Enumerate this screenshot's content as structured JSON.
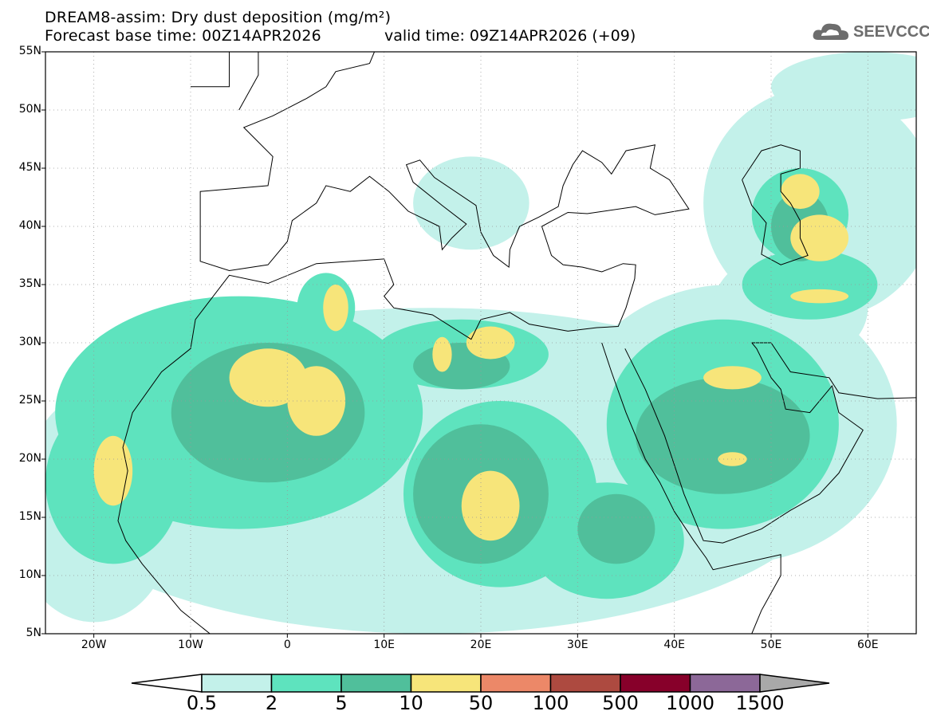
{
  "title": {
    "line1": "DREAM8-assim: Dry dust deposition (mg/m²)",
    "base_time": "Forecast base time: 00Z14APR2026",
    "valid_time": "valid time: 09Z14APR2026 (+09)"
  },
  "logo": {
    "text": "SEEVCCC",
    "icon": "cloud-icon"
  },
  "lat_labels": [
    "55N",
    "50N",
    "45N",
    "40N",
    "35N",
    "30N",
    "25N",
    "20N",
    "15N",
    "10N",
    "5N"
  ],
  "lon_labels": [
    "20W",
    "10W",
    "0",
    "10E",
    "20E",
    "30E",
    "40E",
    "50E",
    "60E"
  ],
  "colorbar": {
    "labels": [
      "0.5",
      "2",
      "5",
      "10",
      "50",
      "100",
      "500",
      "1000",
      "1500"
    ],
    "colors": [
      "#c3f1ea",
      "#5ee3be",
      "#50bf9b",
      "#f7e57a",
      "#ec8868",
      "#ad4a40",
      "#87002a",
      "#8c6898"
    ],
    "below_color": "#ffffff",
    "above_color": "#a9a9a9"
  }
}
